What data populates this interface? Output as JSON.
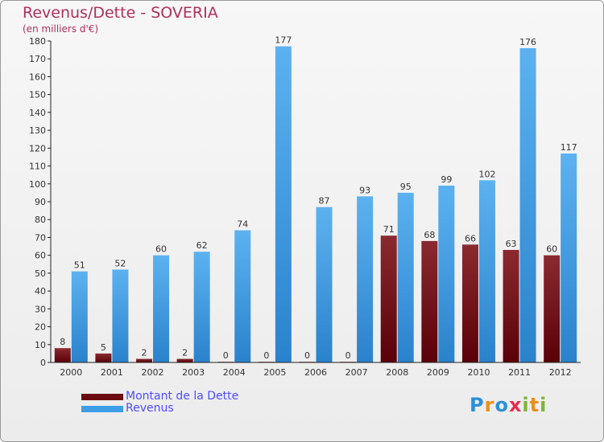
{
  "header": {
    "title": "Revenus/Dette - SOVERIA",
    "subtitle": "(en milliers d'€)"
  },
  "legend": {
    "items": [
      {
        "label": "Montant de la Dette",
        "color": "#6b0a10"
      },
      {
        "label": "Revenus",
        "color": "#3d9ee6"
      }
    ]
  },
  "logo": {
    "text": "Proxiti",
    "letters": [
      {
        "char": "P",
        "color": "#2e8fd8"
      },
      {
        "char": "r",
        "color": "#e8901a"
      },
      {
        "char": "o",
        "color": "#2e8fd8"
      },
      {
        "char": "x",
        "color": "#e03050"
      },
      {
        "char": "i",
        "color": "#7ab830"
      },
      {
        "char": "t",
        "color": "#e8901a"
      },
      {
        "char": "i",
        "color": "#7ab830"
      }
    ]
  },
  "chart_data": {
    "type": "bar",
    "title": "Revenus/Dette - SOVERIA",
    "subtitle": "(en milliers d'€)",
    "categories": [
      "2000",
      "2001",
      "2002",
      "2003",
      "2004",
      "2005",
      "2006",
      "2007",
      "2008",
      "2009",
      "2010",
      "2011",
      "2012"
    ],
    "series": [
      {
        "name": "Montant de la Dette",
        "color": "#6b0a10",
        "values": [
          8,
          5,
          2,
          2,
          0,
          0,
          0,
          0,
          71,
          68,
          66,
          63,
          60
        ]
      },
      {
        "name": "Revenus",
        "color": "#3d9ee6",
        "values": [
          51,
          52,
          60,
          62,
          74,
          177,
          87,
          93,
          95,
          99,
          102,
          176,
          117
        ]
      }
    ],
    "ylim": [
      0,
      180
    ],
    "yticks": [
      0,
      10,
      20,
      30,
      40,
      50,
      60,
      70,
      80,
      90,
      100,
      110,
      120,
      130,
      140,
      150,
      160,
      170,
      180
    ],
    "grid": false,
    "legend_position": "bottom-left"
  }
}
